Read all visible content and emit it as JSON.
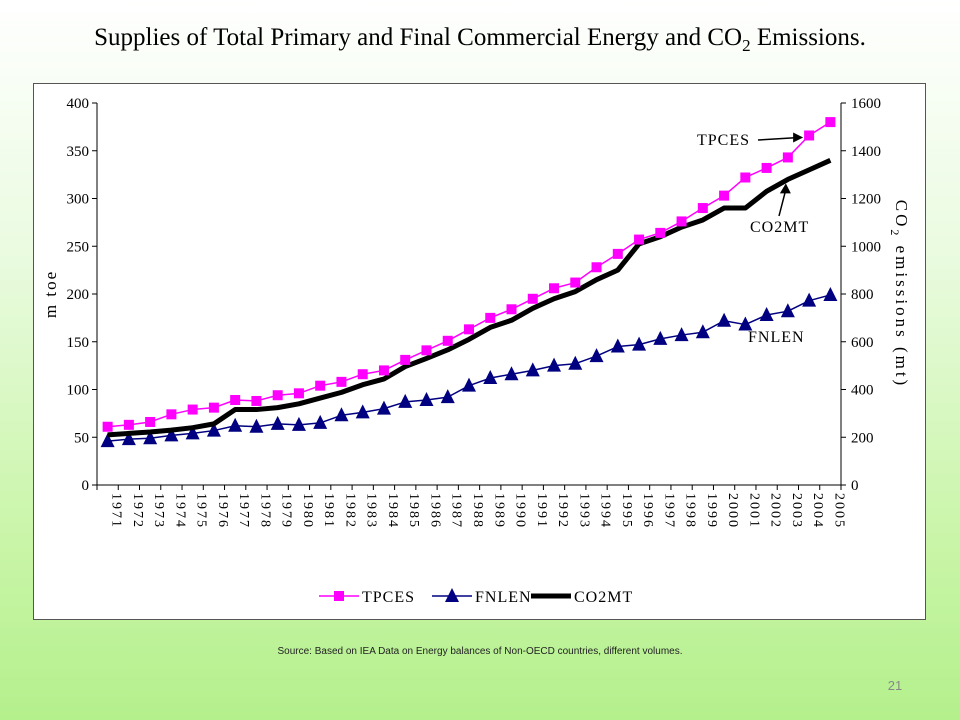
{
  "slide": {
    "title_main": "Supplies of Total Primary and Final Commercial Energy and CO",
    "title_sub": "2",
    "title_end": " Emissions.",
    "source": "Source: Based on IEA Data on Energy balances of Non-OECD countries, different volumes.",
    "page_number": "21"
  },
  "chart_data": {
    "type": "line",
    "categories": [
      "1971",
      "1972",
      "1973",
      "1974",
      "1975",
      "1976",
      "1977",
      "1978",
      "1979",
      "1980",
      "1981",
      "1982",
      "1983",
      "1984",
      "1985",
      "1986",
      "1987",
      "1988",
      "1989",
      "1990",
      "1991",
      "1992",
      "1993",
      "1994",
      "1995",
      "1996",
      "1997",
      "1998",
      "1999",
      "2000",
      "2001",
      "2002",
      "2003",
      "2004",
      "2005"
    ],
    "ylabel_left": "m toe",
    "ylabel_right": "CO2 emissions (mt)",
    "ylabel_right_parts": [
      "CO",
      "2",
      " emissions (mt)"
    ],
    "ylim_left": [
      0,
      400
    ],
    "yticks_left": [
      0,
      50,
      100,
      150,
      200,
      250,
      300,
      350,
      400
    ],
    "ylim_right": [
      0,
      1600
    ],
    "yticks_right": [
      0,
      200,
      400,
      600,
      800,
      1000,
      1200,
      1400,
      1600
    ],
    "legend_position": "bottom",
    "series": [
      {
        "name": "TPCES",
        "axis": "left",
        "color": "#ff00ff",
        "marker": "square",
        "values": [
          61,
          63,
          66,
          74,
          79,
          81,
          89,
          88,
          94,
          96,
          104,
          108,
          116,
          120,
          131,
          141,
          151,
          163,
          175,
          184,
          195,
          206,
          212,
          228,
          242,
          257,
          264,
          276,
          290,
          303,
          322,
          332,
          343,
          366,
          380
        ]
      },
      {
        "name": "FNLEN",
        "axis": "left",
        "color": "#000080",
        "marker": "triangle",
        "values": [
          46,
          48,
          49,
          52,
          54,
          57,
          62,
          61,
          64,
          63,
          65,
          73,
          76,
          80,
          87,
          89,
          92,
          104,
          112,
          116,
          120,
          125,
          127,
          135,
          145,
          147,
          153,
          157,
          160,
          172,
          168,
          178,
          182,
          193,
          199
        ]
      },
      {
        "name": "CO2MT",
        "axis": "right",
        "color": "#000000",
        "marker": "none",
        "values": [
          210,
          216,
          222,
          230,
          240,
          256,
          316,
          316,
          324,
          340,
          364,
          388,
          420,
          444,
          496,
          530,
          566,
          610,
          660,
          690,
          740,
          780,
          810,
          860,
          900,
          1010,
          1040,
          1080,
          1110,
          1160,
          1160,
          1230,
          1280,
          1320,
          1360
        ]
      }
    ],
    "annotations": [
      {
        "text": "TPCES",
        "target": "TPCES"
      },
      {
        "text": "CO2MT",
        "target": "CO2MT"
      },
      {
        "text": "FNLEN",
        "target": "FNLEN"
      }
    ],
    "grid": false
  }
}
